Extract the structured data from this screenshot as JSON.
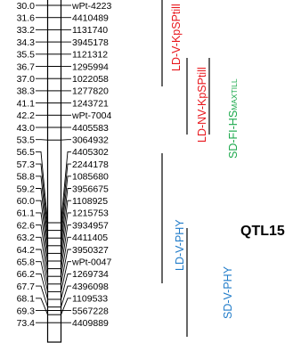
{
  "linkage_group": {
    "positions": [
      "30.0",
      "31.6",
      "33.2",
      "34.3",
      "35.5",
      "36.7",
      "37.0",
      "38.3",
      "41.1",
      "42.2",
      "43.0",
      "53.5",
      "56.5",
      "57.3",
      "58.8",
      "59.2",
      "60.0",
      "61.1",
      "62.6",
      "63.2",
      "64.2",
      "65.8",
      "66.2",
      "67.7",
      "68.1",
      "69.3",
      "73.4"
    ],
    "markers": [
      "wPt-4223",
      "4410489",
      "1131740",
      "3945178",
      "1121312",
      "1295994",
      "1022058",
      "1277820",
      "1243721",
      "wPt-7004",
      "4405583",
      "3064932",
      "4405302",
      "2244178",
      "1085680",
      "3956675",
      "1108925",
      "1215753",
      "3934957",
      "4411405",
      "3950327",
      "wPt-0047",
      "1269734",
      "4396098",
      "1109533",
      "5567228",
      "4409889"
    ]
  },
  "qtls": [
    {
      "label": "LD-V-KpSPtill",
      "color": "#e8151b"
    },
    {
      "label": "LD-NV-KpSPtill",
      "color": "#e8151b"
    },
    {
      "label": "SD-FI-HSMAXTILL",
      "color": "#1ba84b"
    },
    {
      "label": "LD-V-PHY",
      "color": "#1f7bc9"
    },
    {
      "label": "SD-V-PHY",
      "color": "#1f7bc9"
    }
  ],
  "title": "QTL15"
}
